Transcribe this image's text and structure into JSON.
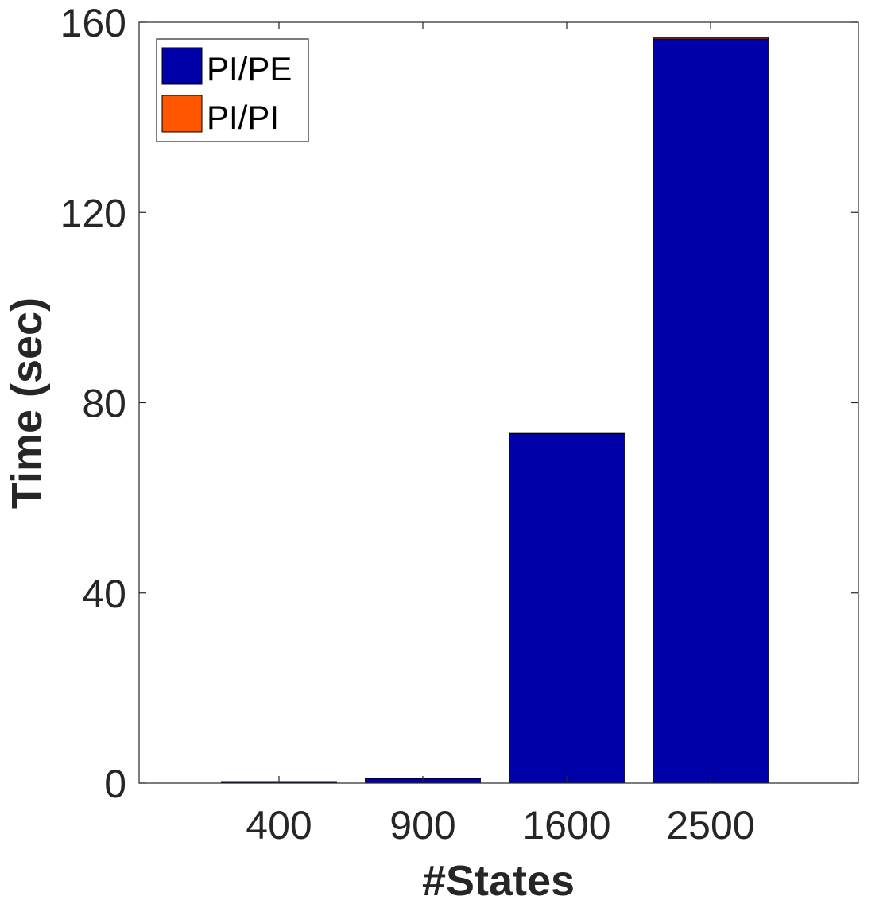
{
  "chart_data": {
    "type": "bar",
    "stacked": true,
    "categories": [
      "400",
      "900",
      "1600",
      "2500"
    ],
    "series": [
      {
        "name": "PI/PE",
        "color": "#0000A8",
        "values": [
          0.3,
          1.0,
          73.5,
          156.5
        ]
      },
      {
        "name": "PI/PI",
        "color": "#FF5500",
        "values": [
          0.02,
          0.05,
          0.2,
          0.3
        ]
      }
    ],
    "xlabel": "#States",
    "ylabel": "Time (sec)",
    "ylim": [
      0,
      160
    ],
    "yticks": [
      0,
      40,
      80,
      120,
      160
    ],
    "grid": false,
    "legend_position": "top-left"
  }
}
